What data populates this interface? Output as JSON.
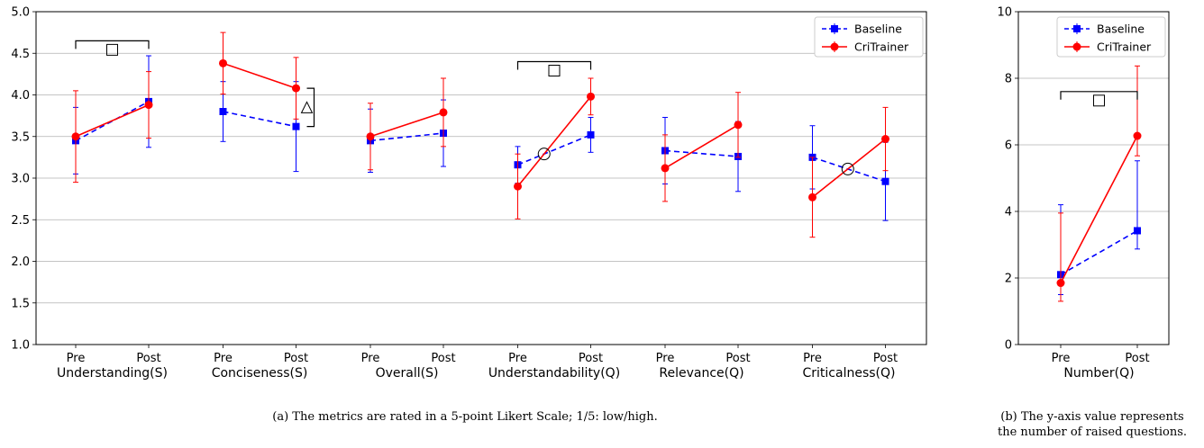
{
  "chart_data": [
    {
      "type": "line",
      "panel": "a",
      "caption": "(a)  The metrics are rated in a 5-point Likert Scale; 1/5: low/high.",
      "ylim": [
        1.0,
        5.0
      ],
      "yticks": [
        "1.0",
        "1.5",
        "2.0",
        "2.5",
        "3.0",
        "3.5",
        "4.0",
        "4.5",
        "5.0"
      ],
      "grid": "horizontal",
      "legend_position": "top-right",
      "x_tick_labels": [
        "Pre",
        "Post"
      ],
      "groups": [
        {
          "label": "Understanding(S)",
          "Baseline": [
            3.45,
            3.92
          ],
          "Baseline_err": [
            0.4,
            0.55
          ],
          "CriTrainer": [
            3.5,
            3.88
          ],
          "CriTrainer_err": [
            0.55,
            0.4
          ],
          "sig": "square",
          "sig_style": "top",
          "sig_y": 4.65
        },
        {
          "label": "Conciseness(S)",
          "Baseline": [
            3.8,
            3.62
          ],
          "Baseline_err": [
            0.36,
            0.54
          ],
          "CriTrainer": [
            4.38,
            4.08
          ],
          "CriTrainer_err": [
            0.37,
            0.37
          ],
          "sig": "triangle",
          "sig_style": "side"
        },
        {
          "label": "Overall(S)",
          "Baseline": [
            3.45,
            3.54
          ],
          "Baseline_err": [
            0.38,
            0.4
          ],
          "CriTrainer": [
            3.5,
            3.79
          ],
          "CriTrainer_err": [
            0.4,
            0.41
          ],
          "sig": "",
          "sig_style": "none"
        },
        {
          "label": "Understandability(Q)",
          "Baseline": [
            3.16,
            3.52
          ],
          "Baseline_err": [
            0.22,
            0.21
          ],
          "CriTrainer": [
            2.9,
            3.98
          ],
          "CriTrainer_err": [
            0.39,
            0.22
          ],
          "sig": "square",
          "sig_style": "top",
          "sig_y": 4.4,
          "cross": "circle"
        },
        {
          "label": "Relevance(Q)",
          "Baseline": [
            3.33,
            3.26
          ],
          "Baseline_err": [
            0.4,
            0.42
          ],
          "CriTrainer": [
            3.12,
            3.64
          ],
          "CriTrainer_err": [
            0.4,
            0.39
          ],
          "sig": "",
          "sig_style": "none"
        },
        {
          "label": "Criticalness(Q)",
          "Baseline": [
            3.25,
            2.96
          ],
          "Baseline_err": [
            0.38,
            0.47
          ],
          "CriTrainer": [
            2.77,
            3.47
          ],
          "CriTrainer_err": [
            0.48,
            0.38
          ],
          "sig": "",
          "sig_style": "none",
          "cross": "circle"
        }
      ],
      "series": [
        {
          "name": "Baseline",
          "color": "#0000ff",
          "marker": "square",
          "linestyle": "dashed"
        },
        {
          "name": "CriTrainer",
          "color": "#ff0000",
          "marker": "circle",
          "linestyle": "solid"
        }
      ]
    },
    {
      "type": "line",
      "panel": "b",
      "caption_lines": [
        "(b)  The y-axis value represents",
        "the number of raised questions."
      ],
      "ylim": [
        0,
        10
      ],
      "yticks": [
        "0",
        "2",
        "4",
        "6",
        "8",
        "10"
      ],
      "grid": "horizontal",
      "legend_position": "top-right",
      "x_tick_labels": [
        "Pre",
        "Post"
      ],
      "groups": [
        {
          "label": "Number(Q)",
          "Baseline": [
            2.1,
            3.42
          ],
          "Baseline_err": [
            2.1,
            2.1
          ],
          "Baseline_err_lo": [
            0.6,
            0.55
          ],
          "Baseline_err_hi": [
            2.1,
            2.1
          ],
          "CriTrainer": [
            1.85,
            6.27
          ],
          "CriTrainer_err_lo": [
            0.55,
            0.6
          ],
          "CriTrainer_err_hi": [
            2.1,
            2.1
          ],
          "sig": "square",
          "sig_style": "top",
          "sig_y": 7.6
        }
      ],
      "series": [
        {
          "name": "Baseline",
          "color": "#0000ff",
          "marker": "square",
          "linestyle": "dashed"
        },
        {
          "name": "CriTrainer",
          "color": "#ff0000",
          "marker": "circle",
          "linestyle": "solid"
        }
      ]
    }
  ]
}
